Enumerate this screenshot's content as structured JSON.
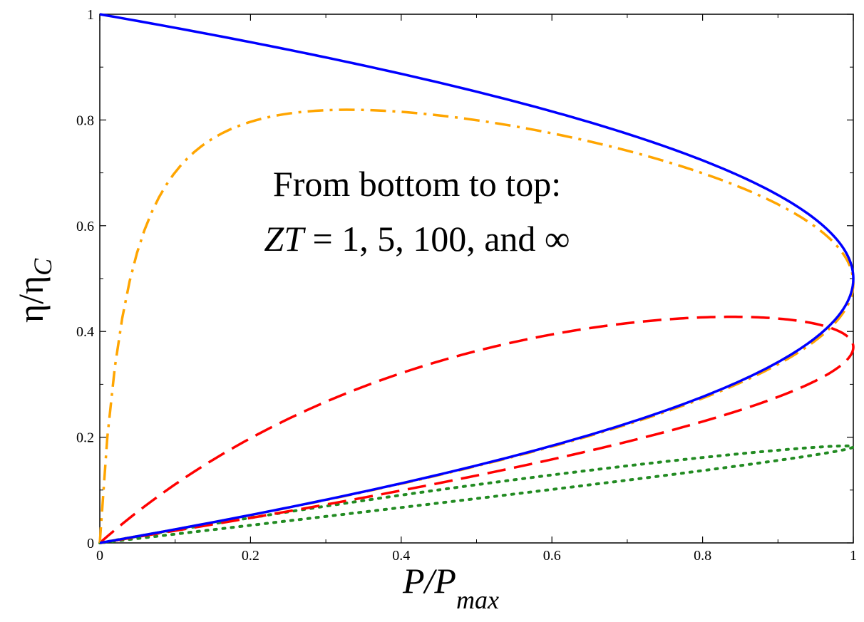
{
  "chart_data": {
    "type": "line",
    "title": "",
    "xlabel": {
      "main": "P/P",
      "sub": "max"
    },
    "ylabel": {
      "main": "η/η",
      "sub": "C"
    },
    "xlim": [
      0,
      1
    ],
    "ylim": [
      0,
      1
    ],
    "x_ticks": [
      {
        "value": 0,
        "label": "0"
      },
      {
        "value": 0.2,
        "label": "0.2"
      },
      {
        "value": 0.4,
        "label": "0.4"
      },
      {
        "value": 0.6,
        "label": "0.6"
      },
      {
        "value": 0.8,
        "label": "0.8"
      },
      {
        "value": 1,
        "label": "1"
      }
    ],
    "y_ticks": [
      {
        "value": 0,
        "label": "0"
      },
      {
        "value": 0.2,
        "label": "0.2"
      },
      {
        "value": 0.4,
        "label": "0.4"
      },
      {
        "value": 0.6,
        "label": "0.6"
      },
      {
        "value": 0.8,
        "label": "0.8"
      },
      {
        "value": 1,
        "label": "1"
      }
    ],
    "grid": false,
    "legend": null,
    "annotations": {
      "line1": "From bottom to top:",
      "line2_var": "ZT",
      "line2_rest": " = 1, 5, 100, and ∞"
    },
    "series": [
      {
        "zt": "1",
        "color": "#228B22",
        "style": "dotted",
        "zt_value": 1
      },
      {
        "zt": "5",
        "color": "#FF0000",
        "style": "dashed",
        "zt_value": 5
      },
      {
        "zt": "100",
        "color": "#FFA500",
        "style": "dashdot",
        "zt_value": 100
      },
      {
        "zt": "∞",
        "color": "#0000FF",
        "style": "solid",
        "zt_value": null
      }
    ]
  }
}
